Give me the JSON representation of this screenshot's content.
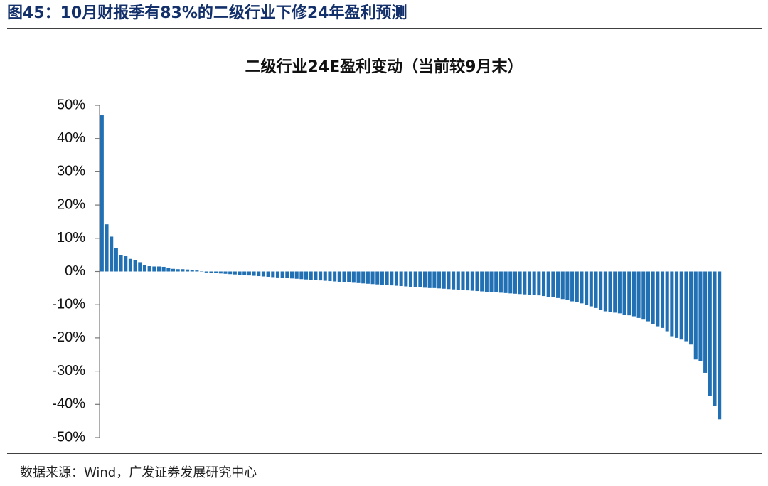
{
  "header": "图45：10月财报季有83%的二级行业下修24年盈利预测",
  "source": "数据来源：Wind，广发证券发展研究中心",
  "chart_data": {
    "type": "bar",
    "title": "二级行业24E盈利变动（当前较9月末）",
    "color": "#2270b4",
    "categories": [
      null,
      null,
      null,
      null,
      null,
      null,
      null,
      null,
      null,
      null,
      null,
      null,
      null,
      null,
      null,
      null,
      null,
      null,
      null,
      null,
      null,
      null,
      null,
      null,
      null,
      null,
      null,
      null,
      null,
      null,
      null,
      null,
      null,
      null,
      null,
      null,
      null,
      null,
      null,
      null,
      null,
      null,
      null,
      null,
      null,
      null,
      null,
      null,
      null,
      null,
      null,
      null,
      null,
      null,
      null,
      null,
      null,
      null,
      null,
      null,
      null,
      null,
      null,
      null,
      null,
      null,
      null,
      null,
      null,
      null,
      null,
      null,
      null,
      null,
      null,
      null,
      null,
      null,
      null,
      null,
      null,
      null,
      null,
      null,
      null,
      null,
      null,
      null,
      null,
      null,
      null,
      null,
      null,
      null,
      null,
      null,
      null,
      null,
      null,
      null,
      null,
      null,
      null,
      null,
      null,
      null,
      null,
      null,
      null,
      null,
      null,
      null,
      null,
      null,
      null,
      null,
      null,
      null,
      null,
      null,
      null,
      null,
      null,
      null,
      null,
      null,
      null,
      null,
      null,
      null,
      null
    ],
    "values": [
      47,
      14.2,
      10.5,
      7.1,
      5.0,
      4.6,
      3.8,
      3.5,
      2.8,
      1.9,
      1.6,
      1.5,
      1.5,
      1.4,
      1.0,
      0.8,
      0.7,
      0.7,
      0.6,
      0.4,
      0.3,
      0.1,
      -0.3,
      -0.4,
      -0.5,
      -0.6,
      -0.7,
      -0.8,
      -0.9,
      -1.0,
      -1.1,
      -1.2,
      -1.3,
      -1.4,
      -1.5,
      -1.6,
      -1.7,
      -1.8,
      -1.9,
      -2.0,
      -2.1,
      -2.2,
      -2.3,
      -2.4,
      -2.5,
      -2.6,
      -2.7,
      -2.8,
      -2.9,
      -3.0,
      -3.1,
      -3.2,
      -3.3,
      -3.4,
      -3.5,
      -3.6,
      -3.7,
      -3.8,
      -3.9,
      -4.0,
      -4.1,
      -4.2,
      -4.3,
      -4.4,
      -4.5,
      -4.6,
      -4.7,
      -4.8,
      -4.9,
      -5.0,
      -5.0,
      -5.1,
      -5.2,
      -5.3,
      -5.4,
      -5.5,
      -5.6,
      -5.7,
      -5.8,
      -5.9,
      -6.0,
      -6.1,
      -6.2,
      -6.3,
      -6.4,
      -6.5,
      -6.6,
      -6.7,
      -6.8,
      -6.9,
      -7.0,
      -7.1,
      -7.2,
      -7.4,
      -7.6,
      -7.8,
      -8.0,
      -8.3,
      -8.6,
      -9.0,
      -9.3,
      -9.6,
      -10.0,
      -10.5,
      -11.0,
      -11.5,
      -12.0,
      -12.2,
      -12.4,
      -12.6,
      -13.0,
      -13.2,
      -13.5,
      -14.0,
      -14.5,
      -15.0,
      -15.8,
      -16.5,
      -17.0,
      -18.0,
      -19.5,
      -20.0,
      -20.5,
      -21.0,
      -22.0,
      -26.5,
      -27.0,
      -30.5,
      -37.5,
      -40.5,
      -44.5
    ],
    "ylim": [
      -50,
      50
    ],
    "yticks": [
      {
        "value": 50,
        "label": "50%"
      },
      {
        "value": 40,
        "label": "40%"
      },
      {
        "value": 30,
        "label": "30%"
      },
      {
        "value": 20,
        "label": "20%"
      },
      {
        "value": 10,
        "label": "10%"
      },
      {
        "value": 0,
        "label": "0%"
      },
      {
        "value": -10,
        "label": "-10%"
      },
      {
        "value": -20,
        "label": "-20%"
      },
      {
        "value": -30,
        "label": "-30%"
      },
      {
        "value": -40,
        "label": "-40%"
      },
      {
        "value": -50,
        "label": "-50%"
      }
    ],
    "grid": false
  }
}
